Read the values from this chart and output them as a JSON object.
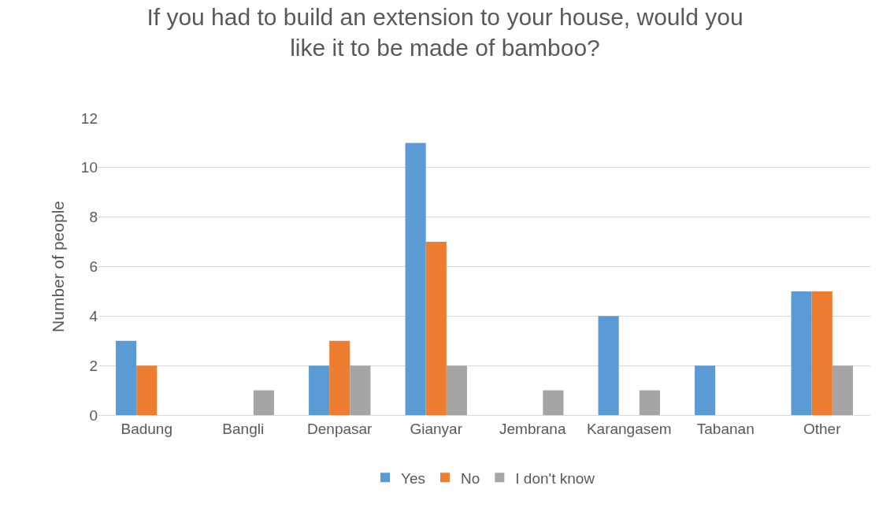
{
  "chart_data": {
    "type": "bar",
    "title": "If you had to build an extension to your house, would you like it to be made of bamboo?",
    "ylabel": "Number of people",
    "categories": [
      "Badung",
      "Bangli",
      "Denpasar",
      "Gianyar",
      "Jembrana",
      "Karangasem",
      "Tabanan",
      "Other"
    ],
    "series": [
      {
        "name": "Yes",
        "color": "#5b9bd5",
        "values": [
          3,
          0,
          2,
          11,
          0,
          4,
          2,
          5
        ]
      },
      {
        "name": "No",
        "color": "#ed7d31",
        "values": [
          2,
          0,
          3,
          7,
          0,
          0,
          0,
          5
        ]
      },
      {
        "name": "I don't know",
        "color": "#a5a5a5",
        "values": [
          0,
          1,
          2,
          2,
          1,
          1,
          0,
          2
        ]
      }
    ],
    "ylim": [
      0,
      12
    ],
    "yticks": [
      0,
      2,
      4,
      6,
      8,
      10,
      12
    ],
    "grid": "y",
    "legend": "bottom"
  }
}
